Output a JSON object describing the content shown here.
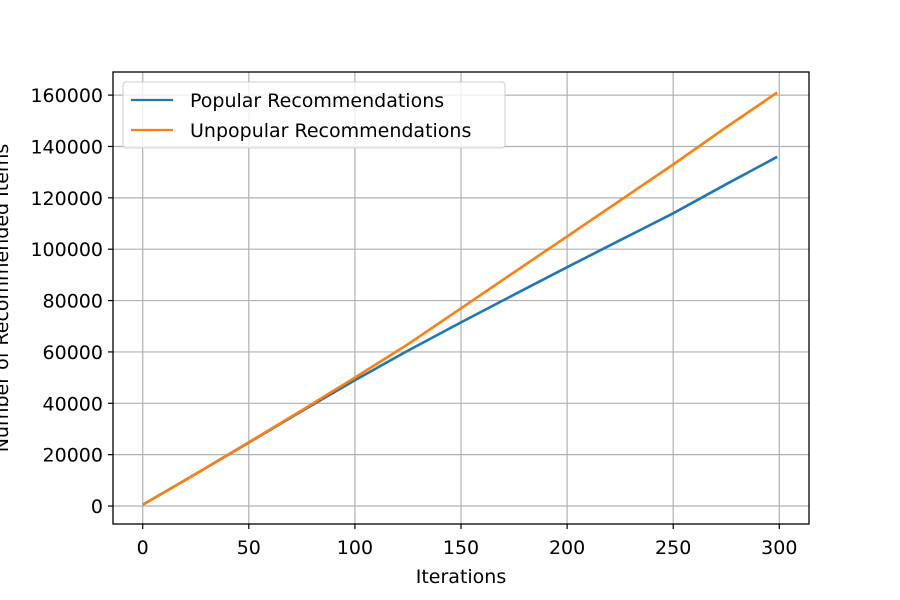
{
  "chart_data": {
    "type": "line",
    "title": "",
    "xlabel": "Iterations",
    "ylabel": "Number of Recommended Items",
    "xlim": [
      -14,
      314
    ],
    "ylim": [
      -7000,
      169000
    ],
    "x_ticks": [
      0,
      50,
      100,
      150,
      200,
      250,
      300
    ],
    "x_tick_labels": [
      "0",
      "50",
      "100",
      "150",
      "200",
      "250",
      "300"
    ],
    "y_ticks": [
      0,
      20000,
      40000,
      60000,
      80000,
      100000,
      120000,
      140000,
      160000
    ],
    "y_tick_labels": [
      "0",
      "20000",
      "40000",
      "60000",
      "80000",
      "100000",
      "120000",
      "140000",
      "160000"
    ],
    "grid": true,
    "legend_position": "top-left",
    "series": [
      {
        "name": "Popular Recommendations",
        "color": "#1f77b4",
        "x": [
          0,
          25,
          50,
          75,
          100,
          125,
          150,
          175,
          200,
          225,
          250,
          275,
          299
        ],
        "values": [
          500,
          12500,
          24700,
          37000,
          49000,
          60500,
          71500,
          82300,
          93000,
          103500,
          114000,
          125300,
          136000
        ]
      },
      {
        "name": "Unpopular Recommendations",
        "color": "#ff7f0e",
        "x": [
          0,
          25,
          50,
          75,
          100,
          125,
          150,
          175,
          200,
          225,
          250,
          275,
          299
        ],
        "values": [
          500,
          12500,
          24800,
          37300,
          50000,
          63000,
          77000,
          91000,
          105000,
          119000,
          133000,
          147500,
          161000
        ]
      }
    ]
  }
}
